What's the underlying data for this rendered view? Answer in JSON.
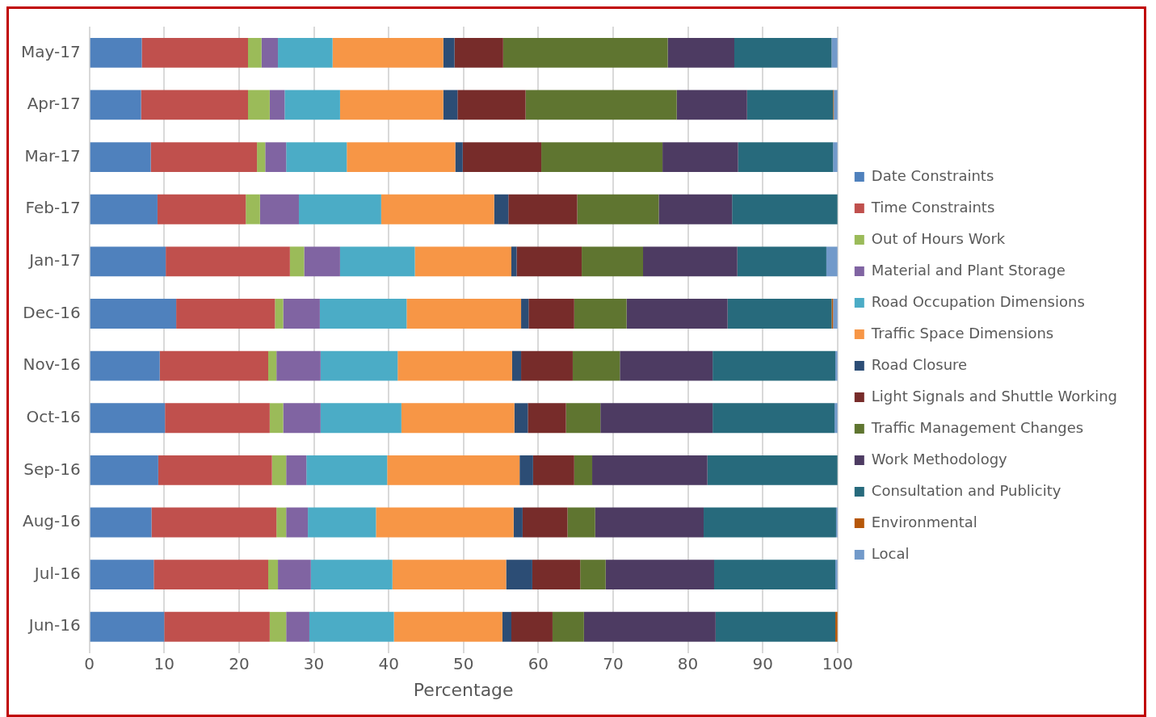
{
  "chart_data": {
    "type": "bar",
    "orientation": "horizontal",
    "stacked": true,
    "xlabel": "Percentage",
    "categories": [
      "May-17",
      "Apr-17",
      "Mar-17",
      "Feb-17",
      "Jan-17",
      "Dec-16",
      "Nov-16",
      "Oct-16",
      "Sep-16",
      "Aug-16",
      "Jul-16",
      "Jun-16"
    ],
    "series": [
      {
        "name": "Date Constraints",
        "color": "#4f81bd",
        "values": [
          7.0,
          6.9,
          8.2,
          9.1,
          10.2,
          11.6,
          9.4,
          10.1,
          9.2,
          8.3,
          8.6,
          10.0
        ]
      },
      {
        "name": "Time Constraints",
        "color": "#c0504d",
        "values": [
          14.2,
          14.3,
          14.2,
          11.8,
          16.6,
          13.2,
          14.5,
          14.0,
          15.2,
          16.7,
          15.3,
          14.1
        ]
      },
      {
        "name": "Out of Hours Work",
        "color": "#9bbb59",
        "values": [
          1.8,
          2.9,
          1.1,
          1.9,
          1.9,
          1.1,
          1.1,
          1.8,
          1.9,
          1.3,
          1.3,
          2.2
        ]
      },
      {
        "name": "Material and Plant Storage",
        "color": "#8064a2",
        "values": [
          2.2,
          2.0,
          2.8,
          5.2,
          4.8,
          4.9,
          5.9,
          5.0,
          2.7,
          2.9,
          4.4,
          3.1
        ]
      },
      {
        "name": "Road Occupation Dimensions",
        "color": "#4bacc6",
        "values": [
          7.3,
          7.4,
          8.1,
          11.0,
          10.0,
          11.6,
          10.3,
          10.8,
          10.8,
          9.1,
          10.9,
          11.3
        ]
      },
      {
        "name": "Traffic Space Dimensions",
        "color": "#f79646",
        "values": [
          14.8,
          13.8,
          14.5,
          15.1,
          12.9,
          15.3,
          15.3,
          15.1,
          17.7,
          18.4,
          15.2,
          14.5
        ]
      },
      {
        "name": "Road Closure",
        "color": "#2c4d75",
        "values": [
          1.5,
          1.9,
          1.0,
          1.9,
          0.7,
          1.0,
          1.2,
          1.8,
          1.8,
          1.2,
          3.5,
          1.2
        ]
      },
      {
        "name": "Light Signals and Shuttle Working",
        "color": "#772c2a",
        "values": [
          6.5,
          9.1,
          10.5,
          9.2,
          8.7,
          6.1,
          6.9,
          5.1,
          5.5,
          6.0,
          6.4,
          5.5
        ]
      },
      {
        "name": "Traffic Management Changes",
        "color": "#5f7530",
        "values": [
          22.0,
          20.2,
          16.2,
          10.9,
          8.2,
          7.0,
          6.3,
          4.6,
          2.4,
          3.7,
          3.4,
          4.2
        ]
      },
      {
        "name": "Work Methodology",
        "color": "#4d3b62",
        "values": [
          8.9,
          9.4,
          10.1,
          9.8,
          12.6,
          13.5,
          12.4,
          15.0,
          15.4,
          14.5,
          14.5,
          17.6
        ]
      },
      {
        "name": "Consultation and Publicity",
        "color": "#276a7c",
        "values": [
          13.0,
          11.5,
          12.7,
          14.1,
          11.9,
          13.9,
          16.4,
          16.3,
          17.4,
          17.7,
          16.2,
          16.0
        ]
      },
      {
        "name": "Environmental",
        "color": "#b65708",
        "values": [
          0,
          0.1,
          0,
          0,
          0,
          0.2,
          0,
          0,
          0,
          0,
          0,
          0.3
        ]
      },
      {
        "name": "Local",
        "color": "#729aca",
        "values": [
          0.8,
          0.5,
          0.6,
          0,
          1.5,
          0.6,
          0.3,
          0.4,
          0,
          0.2,
          0.3,
          0
        ]
      }
    ],
    "xlim": [
      0,
      100
    ],
    "xticks": [
      0,
      10,
      20,
      30,
      40,
      50,
      60,
      70,
      80,
      90,
      100
    ],
    "grid": "x",
    "legend": "right"
  }
}
